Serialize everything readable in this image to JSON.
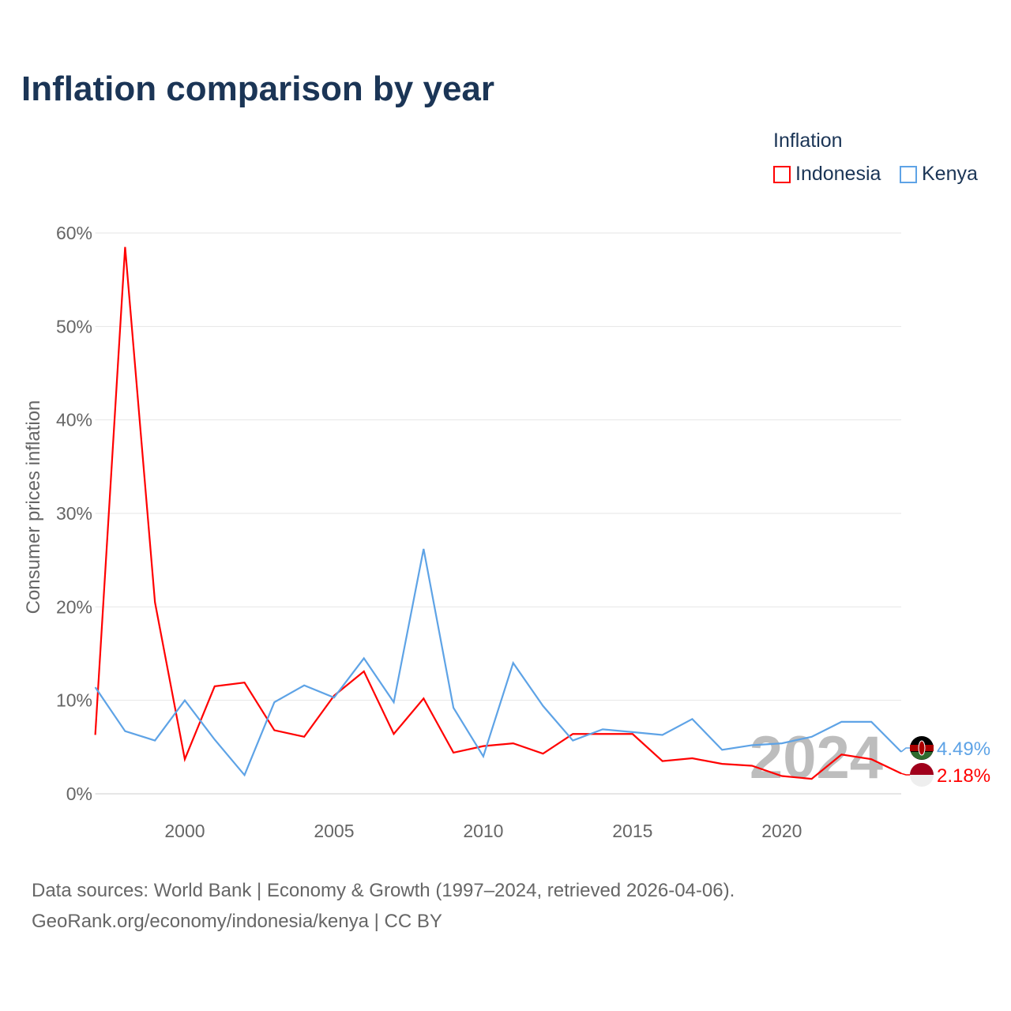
{
  "title": "Inflation comparison by year",
  "legend": {
    "title": "Inflation",
    "items": [
      "Indonesia",
      "Kenya"
    ]
  },
  "source": {
    "line1": "Data sources: World Bank | Economy & Growth (1997–2024, retrieved 2026-04-06).",
    "line2": "GeoRank.org/economy/indonesia/kenya | CC BY"
  },
  "chart_data": {
    "type": "line",
    "title": "Inflation comparison by year",
    "ylabel": "Consumer prices inflation",
    "xlabel": "",
    "ylim": [
      0,
      60
    ],
    "yticks": [
      "0%",
      "10%",
      "20%",
      "30%",
      "40%",
      "50%",
      "60%"
    ],
    "xticks": [
      "2000",
      "2005",
      "2010",
      "2015",
      "2020"
    ],
    "watermark_year": "2024",
    "x": [
      1997,
      1998,
      1999,
      2000,
      2001,
      2002,
      2003,
      2004,
      2005,
      2006,
      2007,
      2008,
      2009,
      2010,
      2011,
      2012,
      2013,
      2014,
      2015,
      2016,
      2017,
      2018,
      2019,
      2020,
      2021,
      2022,
      2023,
      2024
    ],
    "series": [
      {
        "name": "Indonesia",
        "color": "#ff0000",
        "end_label": "2.18%",
        "values": [
          6.3,
          58.5,
          20.5,
          3.7,
          11.5,
          11.9,
          6.8,
          6.1,
          10.5,
          13.1,
          6.4,
          10.2,
          4.4,
          5.1,
          5.4,
          4.3,
          6.4,
          6.4,
          6.4,
          3.5,
          3.8,
          3.2,
          3.0,
          1.9,
          1.6,
          4.2,
          3.7,
          2.18
        ]
      },
      {
        "name": "Kenya",
        "color": "#5ea3e6",
        "end_label": "4.49%",
        "values": [
          11.4,
          6.7,
          5.7,
          10.0,
          5.8,
          2.0,
          9.8,
          11.6,
          10.3,
          14.5,
          9.8,
          26.2,
          9.2,
          4.0,
          14.0,
          9.4,
          5.7,
          6.9,
          6.6,
          6.3,
          8.0,
          4.7,
          5.2,
          5.4,
          6.1,
          7.7,
          7.7,
          4.49
        ]
      }
    ]
  }
}
